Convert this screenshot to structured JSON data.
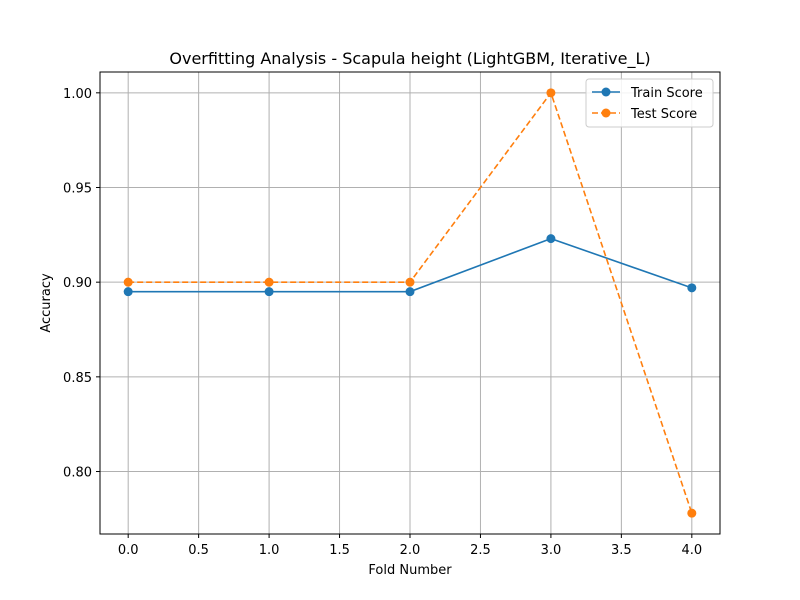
{
  "chart_data": {
    "type": "line",
    "title": "Overfitting Analysis - Scapula height (LightGBM, Iterative_L)",
    "xlabel": "Fold Number",
    "ylabel": "Accuracy",
    "x": [
      0,
      1,
      2,
      3,
      4
    ],
    "xlim": [
      -0.2,
      4.2
    ],
    "ylim": [
      0.767,
      1.011
    ],
    "xticks": [
      "0.0",
      "0.5",
      "1.0",
      "1.5",
      "2.0",
      "2.5",
      "3.0",
      "3.5",
      "4.0"
    ],
    "yticks": [
      "0.80",
      "0.85",
      "0.90",
      "0.95",
      "1.00"
    ],
    "grid": true,
    "legend_position": "top-right",
    "series": [
      {
        "name": "Train Score",
        "values": [
          0.895,
          0.895,
          0.895,
          0.923,
          0.897
        ],
        "color": "#1f77b4",
        "style": "solid",
        "marker": "circle"
      },
      {
        "name": "Test Score",
        "values": [
          0.9,
          0.9,
          0.9,
          1.0,
          0.778
        ],
        "color": "#ff7f0e",
        "style": "dashed",
        "marker": "circle"
      }
    ]
  }
}
